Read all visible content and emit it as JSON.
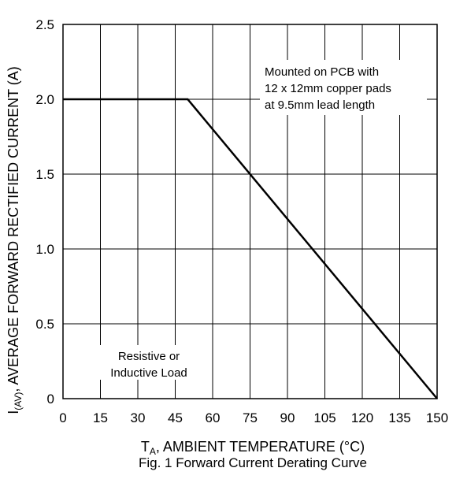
{
  "chart_data": {
    "type": "line",
    "title": "",
    "caption": "Fig. 1 Forward Current Derating Curve",
    "xlabel": {
      "main": "T",
      "sub": "A",
      "rest": ", AMBIENT TEMPERATURE (°C)"
    },
    "ylabel": {
      "main": "I",
      "sub": "(AV)",
      "rest": ", AVERAGE FORWARD RECTIFIED CURRENT (A)"
    },
    "xlim": [
      0,
      150
    ],
    "ylim": [
      0,
      2.5
    ],
    "x_ticks": [
      0,
      15,
      30,
      45,
      60,
      75,
      90,
      105,
      120,
      135,
      150
    ],
    "x_tick_labels": [
      "0",
      "15",
      "30",
      "45",
      "60",
      "75",
      "90",
      "105",
      "120",
      "135",
      "150"
    ],
    "y_ticks": [
      0,
      0.5,
      1.0,
      1.5,
      2.0,
      2.5
    ],
    "y_tick_labels": [
      "0",
      "0.5",
      "1.0",
      "1.5",
      "2.0",
      "2.5"
    ],
    "x_grid": [
      0,
      15,
      30,
      45,
      60,
      75,
      90,
      105,
      120,
      135,
      150
    ],
    "y_grid": [
      0,
      0.5,
      1.0,
      1.5,
      2.0,
      2.5
    ],
    "grid": true,
    "series": [
      {
        "x": [
          0,
          50,
          150
        ],
        "y": [
          2.0,
          2.0,
          0
        ]
      }
    ],
    "annotations": [
      {
        "lines": [
          "Mounted on PCB with",
          "12 x 12mm copper pads",
          "at 9.5mm lead length"
        ]
      },
      {
        "lines": [
          "Resistive or",
          "Inductive Load"
        ]
      }
    ]
  }
}
